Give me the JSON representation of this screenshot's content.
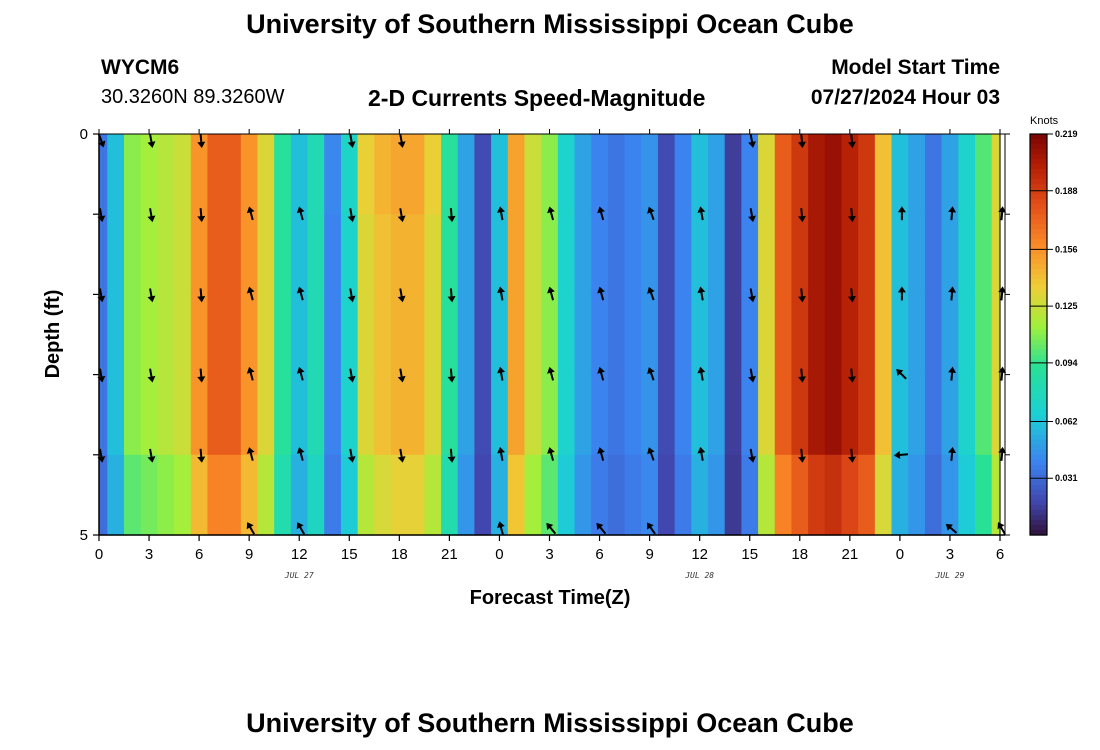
{
  "header": {
    "title": "University of Southern Mississippi Ocean Cube",
    "station": "WYCM6",
    "coordinates": "30.3260N  89.3260W",
    "subtitle": "2-D Currents Speed-Magnitude",
    "model_start_label": "Model Start Time",
    "model_start_value": "07/27/2024 Hour 03"
  },
  "footer": {
    "title": "University of Southern Mississippi Ocean Cube"
  },
  "chart_data": {
    "type": "heatmap",
    "title": "2-D Currents Speed-Magnitude",
    "xlabel": "Forecast Time(Z)",
    "ylabel": "Depth (ft)",
    "units": "Knots",
    "x_hours": [
      0,
      3,
      6,
      9,
      12,
      15,
      18,
      21,
      24,
      27,
      30,
      33,
      36,
      39,
      42,
      45,
      48,
      51,
      54
    ],
    "x_tick_labels": [
      "0",
      "3",
      "6",
      "9",
      "12",
      "15",
      "18",
      "21",
      "0",
      "3",
      "6",
      "9",
      "12",
      "15",
      "18",
      "21",
      "0",
      "3",
      "6"
    ],
    "xlim": [
      0,
      54
    ],
    "date_labels": [
      {
        "hour": 12,
        "text": "JUL 27"
      },
      {
        "hour": 36,
        "text": "JUL 28"
      },
      {
        "hour": 51,
        "text": "JUL 29"
      }
    ],
    "y_tick_labels": [
      "0",
      "",
      "",
      "",
      "",
      "5"
    ],
    "ylim": [
      0,
      5
    ],
    "colorbar": {
      "min": 0.0,
      "max": 0.219,
      "tick_labels": [
        "0.219",
        "0.188",
        "0.156",
        "0.125",
        "0.094",
        "0.062",
        "0.031"
      ],
      "tick_values": [
        0.219,
        0.188,
        0.156,
        0.125,
        0.094,
        0.062,
        0.031
      ]
    },
    "speed_by_hour": [
      0.035,
      0.06,
      0.11,
      0.115,
      0.12,
      0.125,
      0.155,
      0.175,
      0.175,
      0.155,
      0.13,
      0.09,
      0.06,
      0.08,
      0.04,
      0.07,
      0.13,
      0.14,
      0.145,
      0.145,
      0.13,
      0.09,
      0.05,
      0.02,
      0.06,
      0.15,
      0.125,
      0.11,
      0.07,
      0.05,
      0.04,
      0.035,
      0.04,
      0.045,
      0.02,
      0.04,
      0.06,
      0.05,
      0.015,
      0.04,
      0.13,
      0.175,
      0.19,
      0.205,
      0.21,
      0.2,
      0.19,
      0.14,
      0.06,
      0.05,
      0.035,
      0.05,
      0.07,
      0.1,
      0.13
    ],
    "depth_variation": {
      "shallow_warm_band_hours": [
        14,
        20
      ],
      "note": "speeds slightly lower toward bottom layers in some periods"
    },
    "arrow_rows_depth_ft": [
      0,
      1,
      2,
      3,
      4,
      5
    ],
    "arrow_hours": [
      0,
      3,
      6,
      9,
      12,
      15,
      18,
      21,
      24,
      27,
      30,
      33,
      36,
      39,
      42,
      45,
      48,
      51,
      54
    ],
    "arrow_directions_deg": [
      [
        160,
        170,
        175,
        null,
        null,
        170,
        170,
        null,
        null,
        null,
        null,
        null,
        null,
        170,
        175,
        175,
        null,
        null,
        null
      ],
      [
        170,
        170,
        175,
        345,
        345,
        170,
        170,
        175,
        350,
        345,
        345,
        340,
        350,
        170,
        175,
        175,
        0,
        5,
        5
      ],
      [
        170,
        170,
        175,
        345,
        345,
        170,
        170,
        175,
        350,
        345,
        345,
        340,
        350,
        170,
        175,
        175,
        0,
        5,
        5
      ],
      [
        170,
        170,
        175,
        345,
        345,
        170,
        170,
        175,
        350,
        345,
        345,
        340,
        350,
        170,
        175,
        175,
        315,
        5,
        5
      ],
      [
        170,
        170,
        175,
        345,
        345,
        170,
        170,
        175,
        350,
        345,
        345,
        340,
        350,
        170,
        175,
        175,
        265,
        5,
        5
      ],
      [
        null,
        null,
        null,
        330,
        330,
        null,
        null,
        null,
        345,
        320,
        320,
        325,
        null,
        null,
        null,
        null,
        null,
        310,
        330
      ]
    ]
  }
}
